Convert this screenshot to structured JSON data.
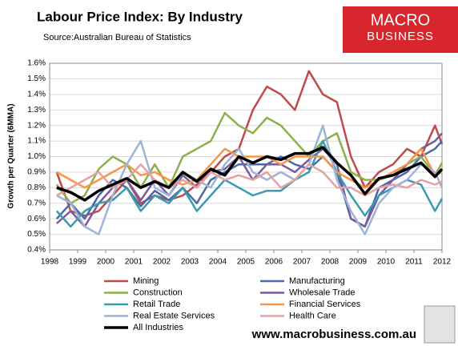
{
  "chart_data": {
    "type": "line",
    "title": "Labour Price Index: By Industry",
    "subtitle": "Source:Australian Bureau of Statistics",
    "y_label": "Growth per Quarter (6MMA)",
    "brand": {
      "line1": "MACRO",
      "line2": "BUSINESS"
    },
    "footer": "www.macrobusiness.com.au",
    "grid": true,
    "xlim": [
      1998,
      2012
    ],
    "xticks": [
      1998,
      1999,
      2000,
      2001,
      2002,
      2003,
      2004,
      2005,
      2006,
      2007,
      2008,
      2009,
      2010,
      2011,
      2012
    ],
    "ylim": [
      0.4,
      1.6
    ],
    "yticks": [
      {
        "value": 0.4,
        "label": "0.4%"
      },
      {
        "value": 0.5,
        "label": "0.5%"
      },
      {
        "value": 0.6,
        "label": "0.6%"
      },
      {
        "value": 0.7,
        "label": "0.7%"
      },
      {
        "value": 0.8,
        "label": "0.8%"
      },
      {
        "value": 0.9,
        "label": "0.9%"
      },
      {
        "value": 1.0,
        "label": "1.0%"
      },
      {
        "value": 1.1,
        "label": "1.1%"
      },
      {
        "value": 1.2,
        "label": "1.2%"
      },
      {
        "value": 1.3,
        "label": "1.3%"
      },
      {
        "value": 1.4,
        "label": "1.4%"
      },
      {
        "value": 1.5,
        "label": "1.5%"
      },
      {
        "value": 1.6,
        "label": "1.6%"
      }
    ],
    "x": [
      1998.25,
      1998.75,
      1999.25,
      1999.75,
      2000.25,
      2000.75,
      2001.25,
      2001.75,
      2002.25,
      2002.75,
      2003.25,
      2003.75,
      2004.25,
      2004.75,
      2005.25,
      2005.75,
      2006.25,
      2006.75,
      2007.25,
      2007.75,
      2008.25,
      2008.75,
      2009.25,
      2009.75,
      2010.25,
      2010.75,
      2011.25,
      2011.75,
      2012.0
    ],
    "series": [
      {
        "name": "Mining",
        "color": "#be4b48",
        "width": 2.5,
        "values": [
          0.9,
          0.65,
          0.62,
          0.65,
          0.75,
          0.85,
          0.7,
          0.75,
          0.72,
          0.75,
          0.82,
          0.9,
          1.0,
          1.05,
          1.3,
          1.45,
          1.4,
          1.3,
          1.55,
          1.4,
          1.35,
          1.0,
          0.8,
          0.9,
          0.95,
          1.05,
          1.0,
          1.2,
          1.08
        ]
      },
      {
        "name": "Manufacturing",
        "color": "#4a6aa5",
        "width": 2.5,
        "values": [
          0.6,
          0.7,
          0.6,
          0.75,
          0.85,
          0.8,
          0.68,
          0.78,
          0.72,
          0.8,
          0.7,
          0.85,
          0.9,
          0.95,
          0.95,
          0.95,
          1.0,
          0.95,
          0.92,
          1.0,
          0.9,
          0.6,
          0.55,
          0.8,
          0.85,
          0.9,
          1.0,
          1.05,
          1.1
        ]
      },
      {
        "name": "Construction",
        "color": "#8db04a",
        "width": 2.5,
        "values": [
          0.82,
          0.7,
          0.75,
          0.92,
          1.0,
          0.95,
          0.8,
          0.95,
          0.8,
          1.0,
          1.05,
          1.1,
          1.28,
          1.2,
          1.15,
          1.25,
          1.2,
          1.1,
          1.0,
          1.1,
          1.15,
          0.9,
          0.85,
          0.85,
          0.88,
          0.95,
          1.0,
          0.88,
          0.96
        ]
      },
      {
        "name": "Wholesale Trade",
        "color": "#7a5a9a",
        "width": 2.5,
        "values": [
          0.57,
          0.65,
          0.55,
          0.7,
          0.8,
          0.85,
          0.72,
          0.85,
          0.75,
          0.88,
          0.8,
          0.9,
          0.92,
          1.0,
          0.85,
          0.95,
          0.95,
          0.9,
          0.98,
          1.05,
          0.95,
          0.6,
          0.55,
          0.75,
          0.85,
          0.95,
          1.05,
          1.1,
          1.15
        ]
      },
      {
        "name": "Retail Trade",
        "color": "#3a9bb0",
        "width": 2.5,
        "values": [
          0.65,
          0.55,
          0.65,
          0.7,
          0.72,
          0.8,
          0.65,
          0.75,
          0.7,
          0.8,
          0.65,
          0.75,
          0.85,
          0.8,
          0.75,
          0.78,
          0.78,
          0.85,
          0.9,
          1.1,
          0.9,
          0.75,
          0.62,
          0.75,
          0.8,
          0.85,
          0.82,
          0.65,
          0.73
        ]
      },
      {
        "name": "Financial Services",
        "color": "#f79646",
        "width": 2.5,
        "values": [
          0.9,
          0.85,
          0.8,
          0.85,
          0.9,
          0.95,
          0.88,
          0.9,
          0.85,
          0.82,
          0.85,
          0.95,
          1.05,
          1.0,
          1.0,
          1.0,
          0.95,
          1.0,
          1.0,
          1.0,
          0.9,
          0.85,
          0.8,
          0.85,
          0.9,
          0.95,
          1.05,
          0.88,
          0.9
        ]
      },
      {
        "name": "Real Estate Services",
        "color": "#9db4d8",
        "width": 2.5,
        "values": [
          0.75,
          0.7,
          0.55,
          0.5,
          0.75,
          0.95,
          1.1,
          0.8,
          0.75,
          0.9,
          0.85,
          0.8,
          0.95,
          1.05,
          0.9,
          0.85,
          0.9,
          0.85,
          0.95,
          1.2,
          0.85,
          0.65,
          0.5,
          0.7,
          0.8,
          0.85,
          0.95,
          0.9,
          0.8
        ]
      },
      {
        "name": "Health Care",
        "color": "#e6a0a0",
        "width": 2.5,
        "values": [
          0.75,
          0.8,
          0.85,
          0.9,
          0.8,
          0.85,
          0.95,
          0.85,
          0.8,
          0.85,
          0.8,
          0.9,
          0.85,
          0.88,
          0.85,
          0.9,
          0.8,
          0.85,
          0.95,
          0.9,
          0.8,
          0.8,
          0.75,
          0.8,
          0.82,
          0.8,
          0.85,
          0.82,
          0.84
        ]
      },
      {
        "name": "All Industries",
        "color": "#000000",
        "width": 3.5,
        "values": [
          0.8,
          0.77,
          0.72,
          0.78,
          0.82,
          0.86,
          0.8,
          0.84,
          0.8,
          0.9,
          0.84,
          0.92,
          0.88,
          1.0,
          0.96,
          1.0,
          0.98,
          1.02,
          1.02,
          1.06,
          0.96,
          0.88,
          0.76,
          0.86,
          0.88,
          0.92,
          0.96,
          0.87,
          0.92
        ]
      }
    ]
  }
}
